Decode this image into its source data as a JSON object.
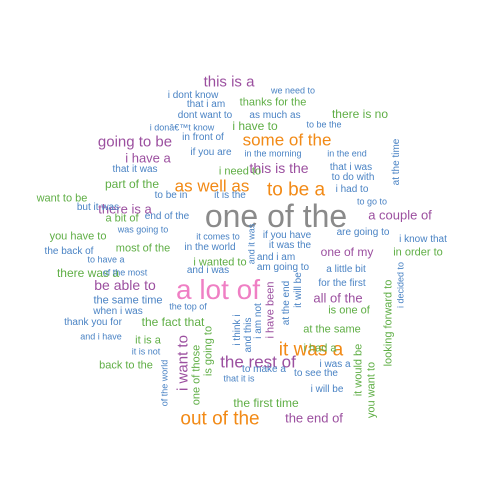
{
  "colors": {
    "gray": "#8a8a8a",
    "pink": "#ef7fc4",
    "orange": "#f28a16",
    "purple": "#9b4f9f",
    "green": "#5fae45",
    "blue": "#4a83c4"
  },
  "words": [
    {
      "text": "one of the",
      "color": "gray"
    },
    {
      "text": "a lot of",
      "color": "pink"
    },
    {
      "text": "out of the",
      "color": "orange"
    },
    {
      "text": "it was a",
      "color": "orange"
    },
    {
      "text": "as well as",
      "color": "orange"
    },
    {
      "text": "to be a",
      "color": "orange"
    },
    {
      "text": "some of the",
      "color": "orange"
    },
    {
      "text": "i want to",
      "color": "purple"
    },
    {
      "text": "the rest of",
      "color": "purple"
    },
    {
      "text": "going to be",
      "color": "purple"
    },
    {
      "text": "this is a",
      "color": "purple"
    },
    {
      "text": "be able to",
      "color": "purple"
    },
    {
      "text": "this is the",
      "color": "purple"
    },
    {
      "text": "a couple of",
      "color": "purple"
    },
    {
      "text": "there is a",
      "color": "purple"
    },
    {
      "text": "all of the",
      "color": "purple"
    },
    {
      "text": "the end of",
      "color": "purple"
    },
    {
      "text": "i have a",
      "color": "purple"
    },
    {
      "text": "one of my",
      "color": "purple"
    },
    {
      "text": "part of the",
      "color": "green"
    },
    {
      "text": "the first time",
      "color": "green"
    },
    {
      "text": "the fact that",
      "color": "green"
    },
    {
      "text": "there is no",
      "color": "green"
    },
    {
      "text": "i have to",
      "color": "green"
    },
    {
      "text": "thanks for the",
      "color": "green"
    },
    {
      "text": "i need to",
      "color": "green"
    },
    {
      "text": "in order to",
      "color": "green"
    },
    {
      "text": "there was a",
      "color": "green"
    },
    {
      "text": "want to be",
      "color": "green"
    },
    {
      "text": "you have to",
      "color": "green"
    },
    {
      "text": "a bit of",
      "color": "green"
    },
    {
      "text": "most of the",
      "color": "green"
    },
    {
      "text": "it is a",
      "color": "green"
    },
    {
      "text": "back to the",
      "color": "green"
    },
    {
      "text": "is one of",
      "color": "green"
    },
    {
      "text": "at the same",
      "color": "green"
    },
    {
      "text": "i had a",
      "color": "green"
    },
    {
      "text": "i wanted to",
      "color": "green"
    },
    {
      "text": "it would be",
      "color": "green"
    },
    {
      "text": "you want to",
      "color": "green"
    },
    {
      "text": "looking forward to",
      "color": "green"
    },
    {
      "text": "is going to",
      "color": "green"
    },
    {
      "text": "one of those",
      "color": "green"
    },
    {
      "text": "the same time",
      "color": "blue"
    },
    {
      "text": "as much as",
      "color": "blue"
    },
    {
      "text": "if you are",
      "color": "blue"
    },
    {
      "text": "i dont know",
      "color": "blue"
    },
    {
      "text": "that i am",
      "color": "blue"
    },
    {
      "text": "dont want to",
      "color": "blue"
    },
    {
      "text": "we need to",
      "color": "blue"
    },
    {
      "text": "in front of",
      "color": "blue"
    },
    {
      "text": "to be the",
      "color": "blue"
    },
    {
      "text": "i donâ€™t know",
      "color": "blue"
    },
    {
      "text": "in the end",
      "color": "blue"
    },
    {
      "text": "in the morning",
      "color": "blue"
    },
    {
      "text": "that it was",
      "color": "blue"
    },
    {
      "text": "that i was",
      "color": "blue"
    },
    {
      "text": "to do with",
      "color": "blue"
    },
    {
      "text": "at the time",
      "color": "blue"
    },
    {
      "text": "i had to",
      "color": "blue"
    },
    {
      "text": "to go to",
      "color": "blue"
    },
    {
      "text": "to be in",
      "color": "blue"
    },
    {
      "text": "it is the",
      "color": "blue"
    },
    {
      "text": "but it was",
      "color": "blue"
    },
    {
      "text": "end of the",
      "color": "blue"
    },
    {
      "text": "was going to",
      "color": "blue"
    },
    {
      "text": "it comes to",
      "color": "blue"
    },
    {
      "text": "and it was",
      "color": "blue"
    },
    {
      "text": "if you have",
      "color": "blue"
    },
    {
      "text": "are going to",
      "color": "blue"
    },
    {
      "text": "i know that",
      "color": "blue"
    },
    {
      "text": "the back of",
      "color": "blue"
    },
    {
      "text": "in the world",
      "color": "blue"
    },
    {
      "text": "it was the",
      "color": "blue"
    },
    {
      "text": "and i am",
      "color": "blue"
    },
    {
      "text": "to have a",
      "color": "blue"
    },
    {
      "text": "of the most",
      "color": "blue"
    },
    {
      "text": "and i was",
      "color": "blue"
    },
    {
      "text": "am going to",
      "color": "blue"
    },
    {
      "text": "a little bit",
      "color": "blue"
    },
    {
      "text": "for the first",
      "color": "blue"
    },
    {
      "text": "i decided to",
      "color": "blue"
    },
    {
      "text": "the top of",
      "color": "blue"
    },
    {
      "text": "when i was",
      "color": "blue"
    },
    {
      "text": "thank you for",
      "color": "blue"
    },
    {
      "text": "and i have",
      "color": "blue"
    },
    {
      "text": "it is not",
      "color": "blue"
    },
    {
      "text": "of the world",
      "color": "blue"
    },
    {
      "text": "to make a",
      "color": "blue"
    },
    {
      "text": "that it is",
      "color": "blue"
    },
    {
      "text": "i will be",
      "color": "blue"
    },
    {
      "text": "to see the",
      "color": "blue"
    },
    {
      "text": "i was a",
      "color": "blue"
    },
    {
      "text": "i think i",
      "color": "blue"
    },
    {
      "text": "and this",
      "color": "blue"
    },
    {
      "text": "i am not",
      "color": "blue"
    },
    {
      "text": "at the end",
      "color": "blue"
    },
    {
      "text": "it will be",
      "color": "blue"
    },
    {
      "text": "i have been",
      "color": "purple"
    }
  ]
}
